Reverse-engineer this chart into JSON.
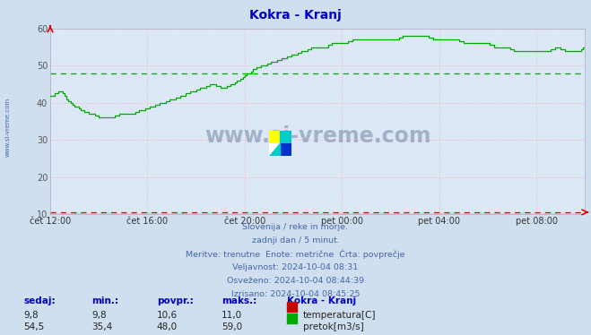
{
  "title": "Kokra - Kranj",
  "title_color": "#0000cc",
  "bg_color": "#d0dff0",
  "plot_bg_color": "#dce8f5",
  "x_labels": [
    "čet 12:00",
    "čet 16:00",
    "čet 20:00",
    "pet 00:00",
    "pet 04:00",
    "pet 08:00"
  ],
  "x_ticks_pos": [
    0,
    48,
    96,
    144,
    192,
    240
  ],
  "total_points": 265,
  "ylim": [
    10,
    60
  ],
  "yticks": [
    10,
    20,
    30,
    40,
    50,
    60
  ],
  "temp_color": "#dd0000",
  "flow_color": "#00aa00",
  "avg_flow_color": "#00aa00",
  "avg_temp_color": "#dd0000",
  "avg_flow_value": 48.0,
  "avg_temp_value": 10.6,
  "watermark": "www.si-vreme.com",
  "watermark_color": "#1a3a6a",
  "watermark_alpha": 0.3,
  "subtitle_lines": [
    "Slovenija / reke in morje.",
    "zadnji dan / 5 minut.",
    "Meritve: trenutne  Enote: metrične  Črta: povprečje",
    "Veljavnost: 2024-10-04 08:31",
    "Osveženo: 2024-10-04 08:44:39",
    "Izrisano: 2024-10-04 08:45:25"
  ],
  "subtitle_color": "#4466aa",
  "table_headers": [
    "sedaj:",
    "min.:",
    "povpr.:",
    "maks.:"
  ],
  "table_header_color": "#0000cc",
  "table_data": [
    [
      "9,8",
      "9,8",
      "10,6",
      "11,0"
    ],
    [
      "54,5",
      "35,4",
      "48,0",
      "59,0"
    ]
  ],
  "table_labels": [
    "temperatura[C]",
    "pretok[m3/s]"
  ],
  "table_label_colors": [
    "#cc0000",
    "#00aa00"
  ],
  "left_label": "www.si-vreme.com",
  "left_label_color": "#4466aa"
}
